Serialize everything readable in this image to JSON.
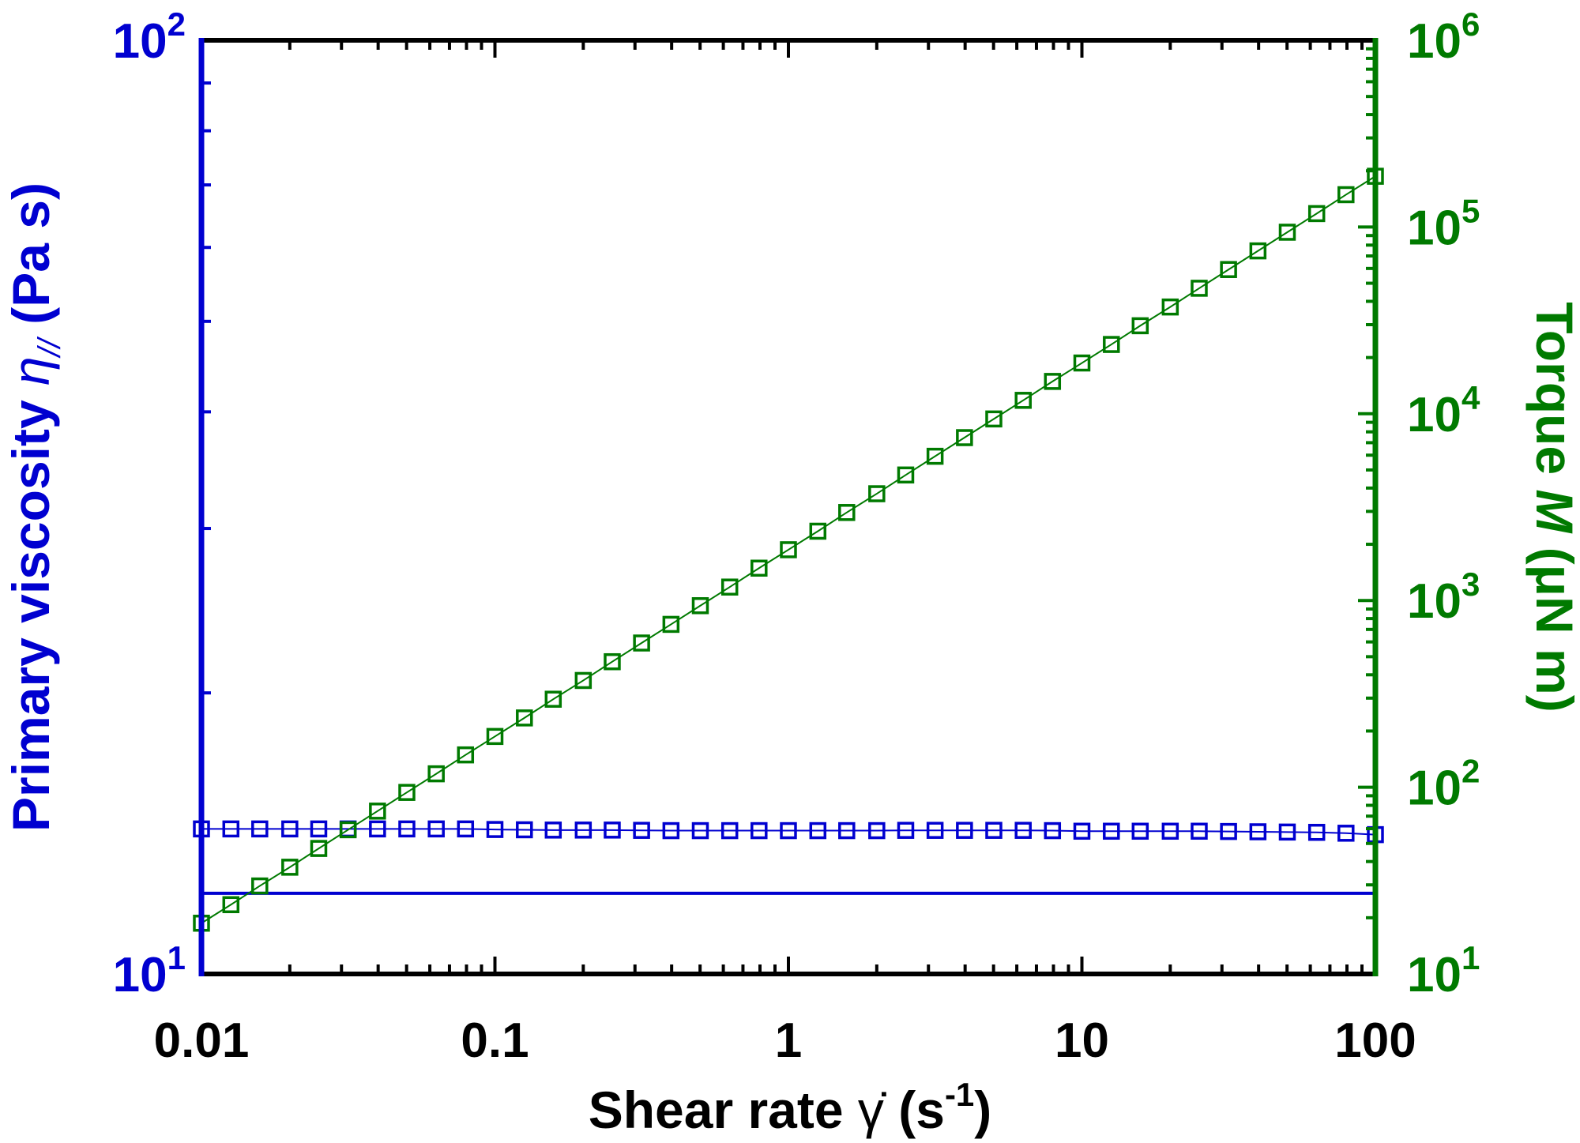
{
  "chart_data": {
    "type": "scatter",
    "xlabel": {
      "main": "Shear rate ",
      "symbol": "γ̇",
      "unit_open": " (s",
      "unit_sup": "-1",
      "unit_close": ")"
    },
    "ylabel_left": {
      "main": "Primary viscosity ",
      "symbol": "η",
      "sub": "//",
      "unit": " (Pa s)"
    },
    "ylabel_right": {
      "main": "Torque ",
      "symbol": "M",
      "unit": " (μN m)"
    },
    "x_scale": "log",
    "xlim": [
      0.01,
      100
    ],
    "y_left_scale": "log",
    "y_left_lim": [
      10,
      100
    ],
    "y_right_scale": "log",
    "y_right_lim": [
      10,
      1000000
    ],
    "x_tick_labels": [
      "0.01",
      "0.1",
      "1",
      "10",
      "100"
    ],
    "x_tick_values": [
      0.01,
      0.1,
      1,
      10,
      100
    ],
    "y_left_ticks": [
      {
        "base": "10",
        "exp": "1",
        "value": 10
      },
      {
        "base": "10",
        "exp": "2",
        "value": 100
      }
    ],
    "y_right_ticks": [
      {
        "base": "10",
        "exp": "1",
        "value": 10
      },
      {
        "base": "10",
        "exp": "2",
        "value": 100
      },
      {
        "base": "10",
        "exp": "3",
        "value": 1000
      },
      {
        "base": "10",
        "exp": "4",
        "value": 10000
      },
      {
        "base": "10",
        "exp": "5",
        "value": 100000
      },
      {
        "base": "10",
        "exp": "6",
        "value": 1000000
      }
    ],
    "colors": {
      "left": "#0000d0",
      "right": "#007a00",
      "frame": "#000000"
    },
    "reference_line_left": 12.2,
    "x": [
      0.01,
      0.0126,
      0.0158,
      0.02,
      0.0251,
      0.0316,
      0.0398,
      0.0501,
      0.0631,
      0.0794,
      0.1,
      0.126,
      0.158,
      0.2,
      0.251,
      0.316,
      0.398,
      0.501,
      0.631,
      0.794,
      1,
      1.26,
      1.58,
      2,
      2.51,
      3.16,
      3.98,
      5.01,
      6.31,
      7.94,
      10,
      12.6,
      15.8,
      20,
      25.1,
      31.6,
      39.8,
      50.1,
      63.1,
      79.4,
      100
    ],
    "series": [
      {
        "name": "Primary viscosity",
        "axis": "left",
        "marker": "open-square",
        "values": [
          14.3,
          14.3,
          14.3,
          14.3,
          14.3,
          14.3,
          14.3,
          14.3,
          14.3,
          14.3,
          14.28,
          14.27,
          14.26,
          14.26,
          14.26,
          14.25,
          14.24,
          14.24,
          14.24,
          14.24,
          14.24,
          14.24,
          14.24,
          14.24,
          14.25,
          14.25,
          14.25,
          14.25,
          14.25,
          14.24,
          14.22,
          14.22,
          14.22,
          14.22,
          14.22,
          14.21,
          14.2,
          14.19,
          14.18,
          14.15,
          14.1
        ]
      },
      {
        "name": "Torque",
        "axis": "right",
        "marker": "open-square",
        "values": [
          18.7,
          23.5,
          29.6,
          37.3,
          47,
          59.2,
          74.5,
          93.8,
          118,
          149,
          187,
          235,
          296,
          373,
          470,
          592,
          745,
          938,
          1180,
          1490,
          1870,
          2350,
          2960,
          3730,
          4700,
          5920,
          7450,
          9380,
          11800,
          14900,
          18700,
          23500,
          29600,
          37300,
          47000,
          59200,
          74500,
          93800,
          118000,
          149000,
          187000
        ]
      }
    ]
  }
}
